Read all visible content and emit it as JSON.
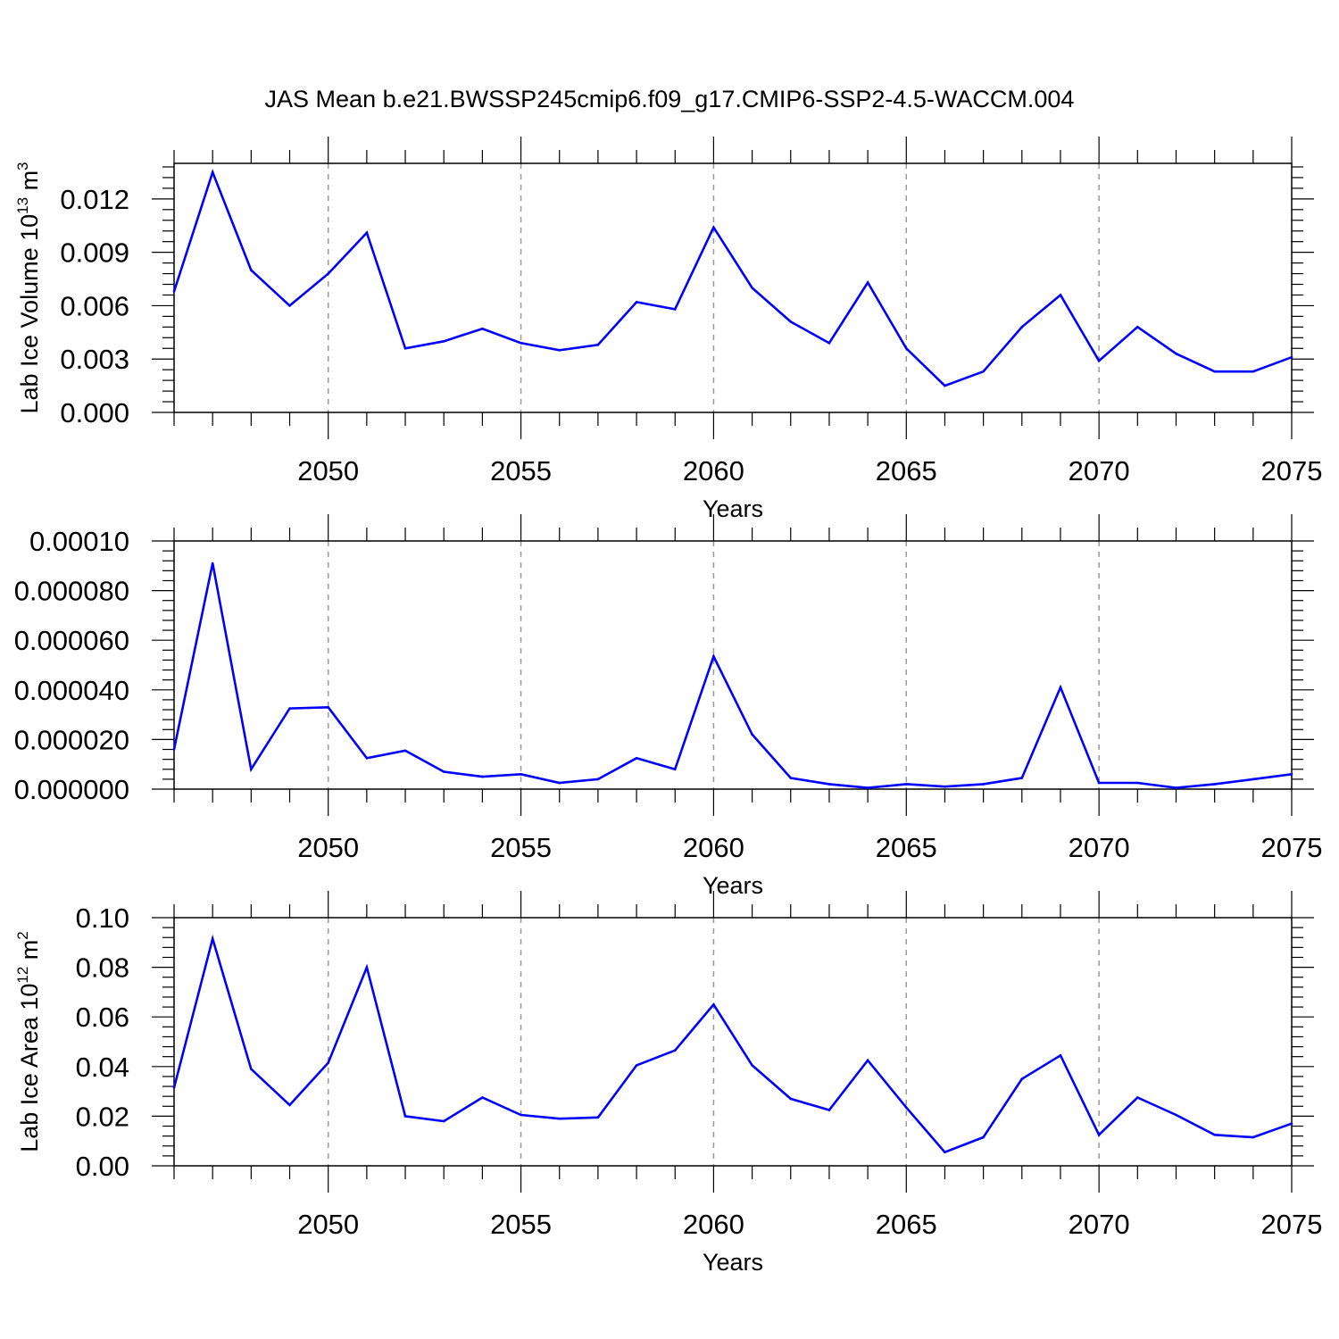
{
  "title": "JAS Mean b.e21.BWSSP245cmip6.f09_g17.CMIP6-SSP2-4.5-WACCM.004",
  "line_color": "#0000ff",
  "grid_color": "#999999",
  "chart_data": [
    {
      "type": "line",
      "name": "ice-volume",
      "ylabel_main": "Lab Ice Volume 10",
      "ylabel_sup": "13",
      "ylabel_unit": " m",
      "ylabel_unit_sup": "3",
      "xlabel": "Years",
      "xlim": [
        2046,
        2075
      ],
      "ylim": [
        0,
        0.014
      ],
      "yticks": [
        0,
        0.003,
        0.006,
        0.009,
        0.012
      ],
      "yticklabels": [
        "0.000",
        "0.003",
        "0.006",
        "0.009",
        "0.012"
      ],
      "yminor_step": 0.0006,
      "xticks": [
        2050,
        2055,
        2060,
        2065,
        2070,
        2075
      ],
      "xticklabels": [
        "2050",
        "2055",
        "2060",
        "2065",
        "2070",
        "2075"
      ],
      "vgrid": [
        2050,
        2055,
        2060,
        2065,
        2070
      ],
      "x": [
        2046,
        2047,
        2048,
        2049,
        2050,
        2051,
        2052,
        2053,
        2054,
        2055,
        2056,
        2057,
        2058,
        2059,
        2060,
        2061,
        2062,
        2063,
        2064,
        2065,
        2066,
        2067,
        2068,
        2069,
        2070,
        2071,
        2072,
        2073,
        2074,
        2075
      ],
      "values": [
        0.0068,
        0.0135,
        0.008,
        0.006,
        0.0078,
        0.0101,
        0.0036,
        0.004,
        0.0047,
        0.0039,
        0.0035,
        0.0038,
        0.0062,
        0.0058,
        0.0104,
        0.007,
        0.0051,
        0.0039,
        0.0073,
        0.0036,
        0.0015,
        0.0023,
        0.0048,
        0.0066,
        0.0029,
        0.0048,
        0.0033,
        0.0023,
        0.0023,
        0.0031
      ]
    },
    {
      "type": "line",
      "name": "ice-middle",
      "ylabel_main": "",
      "ylabel_sup": "",
      "ylabel_unit": "",
      "ylabel_unit_sup": "",
      "xlabel": "Years",
      "xlim": [
        2046,
        2075
      ],
      "ylim": [
        0,
        0.0001
      ],
      "yticks": [
        0,
        2e-05,
        4e-05,
        6e-05,
        8e-05,
        0.0001
      ],
      "yticklabels": [
        "0.000000",
        "0.000020",
        "0.000040",
        "0.000060",
        "0.000080",
        "0.00010"
      ],
      "yminor_step": 4e-06,
      "xticks": [
        2050,
        2055,
        2060,
        2065,
        2070,
        2075
      ],
      "xticklabels": [
        "2050",
        "2055",
        "2060",
        "2065",
        "2070",
        "2075"
      ],
      "vgrid": [
        2050,
        2055,
        2060,
        2065,
        2070
      ],
      "x": [
        2046,
        2047,
        2048,
        2049,
        2050,
        2051,
        2052,
        2053,
        2054,
        2055,
        2056,
        2057,
        2058,
        2059,
        2060,
        2061,
        2062,
        2063,
        2064,
        2065,
        2066,
        2067,
        2068,
        2069,
        2070,
        2071,
        2072,
        2073,
        2074,
        2075
      ],
      "values": [
        1.6e-05,
        9.1e-05,
        8e-06,
        3.25e-05,
        3.3e-05,
        1.25e-05,
        1.55e-05,
        7e-06,
        5e-06,
        6e-06,
        2.5e-06,
        4e-06,
        1.25e-05,
        8e-06,
        5.35e-05,
        2.2e-05,
        4.5e-06,
        2e-06,
        5e-07,
        2e-06,
        1e-06,
        2e-06,
        4.5e-06,
        4.1e-05,
        2.5e-06,
        2.5e-06,
        5e-07,
        2e-06,
        4e-06,
        6e-06
      ]
    },
    {
      "type": "line",
      "name": "ice-area",
      "ylabel_main": "Lab Ice Area 10",
      "ylabel_sup": "12",
      "ylabel_unit": " m",
      "ylabel_unit_sup": "2",
      "xlabel": "Years",
      "xlim": [
        2046,
        2075
      ],
      "ylim": [
        0,
        0.1
      ],
      "yticks": [
        0,
        0.02,
        0.04,
        0.06,
        0.08,
        0.1
      ],
      "yticklabels": [
        "0.00",
        "0.02",
        "0.04",
        "0.06",
        "0.08",
        "0.10"
      ],
      "yminor_step": 0.004,
      "xticks": [
        2050,
        2055,
        2060,
        2065,
        2070,
        2075
      ],
      "xticklabels": [
        "2050",
        "2055",
        "2060",
        "2065",
        "2070",
        "2075"
      ],
      "vgrid": [
        2050,
        2055,
        2060,
        2065,
        2070
      ],
      "x": [
        2046,
        2047,
        2048,
        2049,
        2050,
        2051,
        2052,
        2053,
        2054,
        2055,
        2056,
        2057,
        2058,
        2059,
        2060,
        2061,
        2062,
        2063,
        2064,
        2065,
        2066,
        2067,
        2068,
        2069,
        2070,
        2071,
        2072,
        2073,
        2074,
        2075
      ],
      "values": [
        0.0315,
        0.0915,
        0.039,
        0.0245,
        0.0415,
        0.08,
        0.02,
        0.018,
        0.0275,
        0.0205,
        0.019,
        0.0195,
        0.0405,
        0.0465,
        0.065,
        0.0405,
        0.027,
        0.0225,
        0.0425,
        0.0235,
        0.0055,
        0.0115,
        0.035,
        0.0445,
        0.0125,
        0.0275,
        0.0205,
        0.0125,
        0.0115,
        0.017
      ]
    }
  ]
}
